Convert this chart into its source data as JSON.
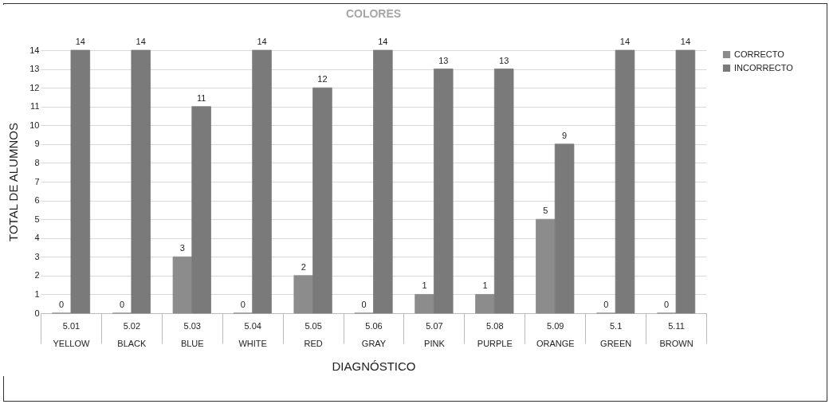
{
  "chart_data": {
    "type": "bar",
    "title": "COLORES",
    "xlabel": "DIAGNÓSTICO",
    "ylabel": "TOTAL DE ALUMNOS",
    "categories": [
      "5.01\nYELLOW",
      "5.02\nBLACK",
      "5.03\nBLUE",
      "5.04\nWHITE",
      "5.05\nRED",
      "5.06\nGRAY",
      "5.07\nPINK",
      "5.08\nPURPLE",
      "5.09\nORANGE",
      "5.1\nGREEN",
      "5.11\nBROWN"
    ],
    "series": [
      {
        "name": "CORRECTO",
        "color": "#8c8c8c",
        "values": [
          0,
          0,
          3,
          0,
          2,
          0,
          1,
          1,
          5,
          0,
          0
        ]
      },
      {
        "name": "INCORRECTO",
        "color": "#7a7a7a",
        "values": [
          14,
          14,
          11,
          14,
          12,
          14,
          13,
          13,
          9,
          14,
          14
        ]
      }
    ],
    "ylim": [
      0,
      14
    ],
    "yticks": [
      0,
      1,
      2,
      3,
      4,
      5,
      6,
      7,
      8,
      9,
      10,
      11,
      12,
      13,
      14
    ],
    "grid": "y",
    "legend": "right",
    "data_labels": true
  }
}
